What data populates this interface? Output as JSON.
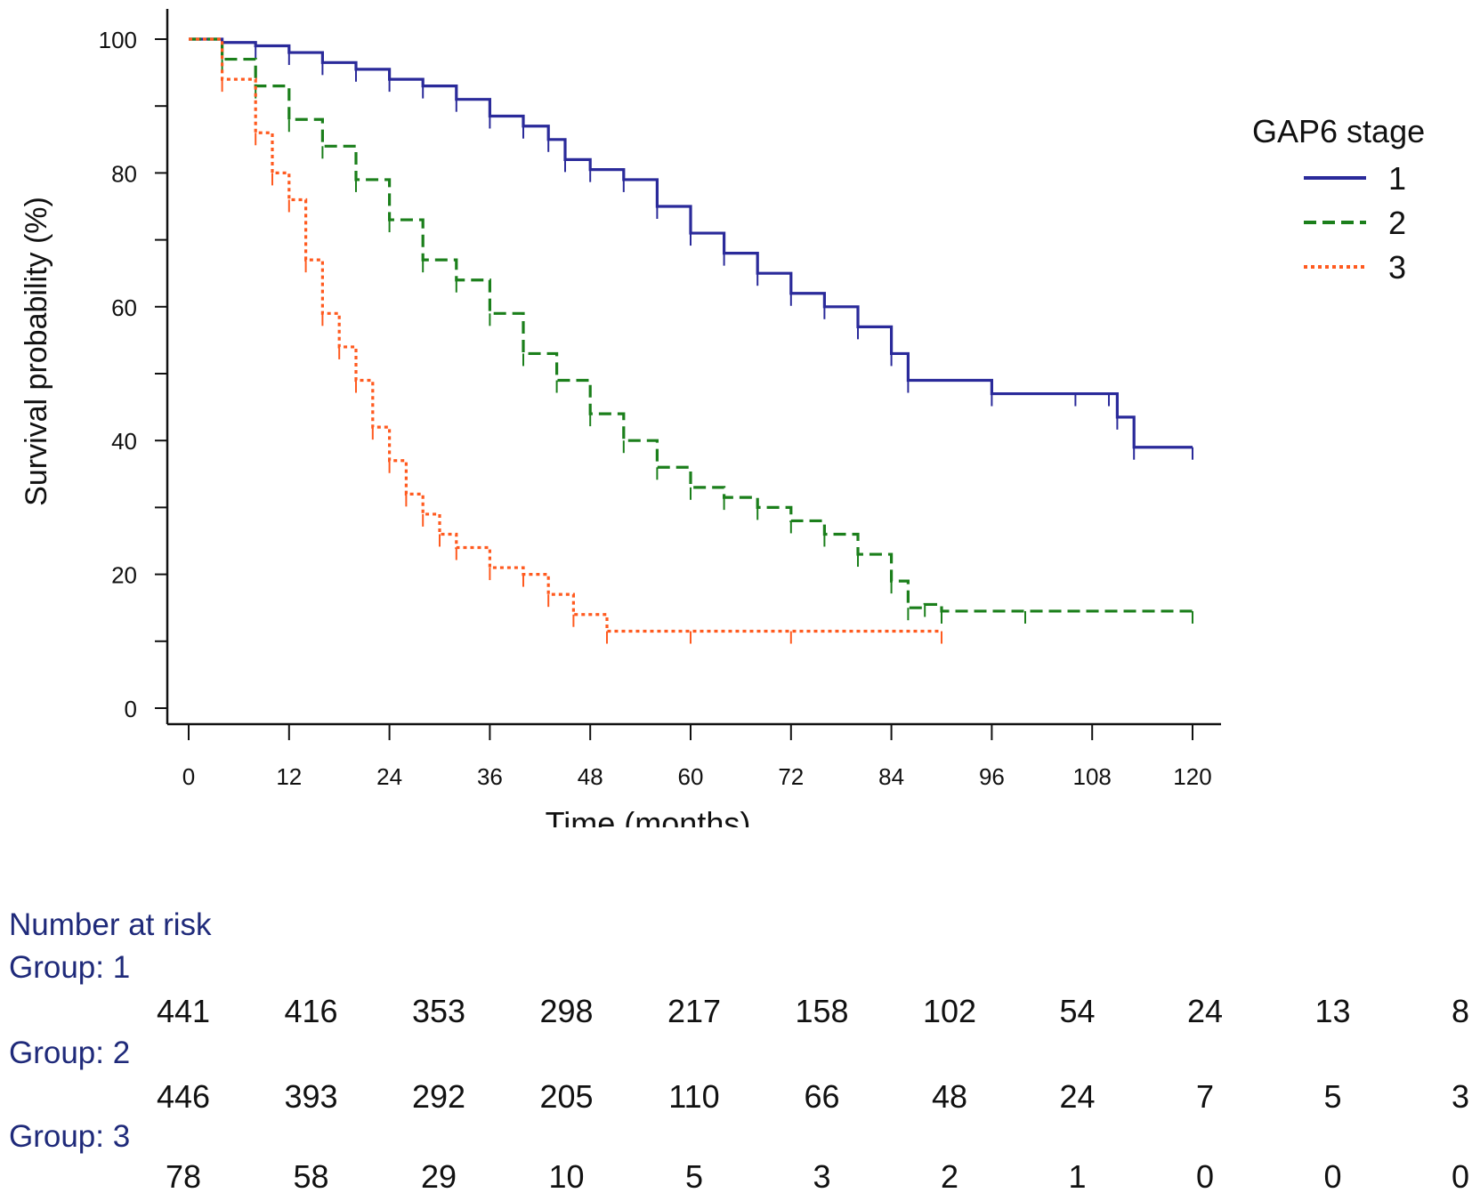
{
  "chart_data": {
    "type": "line",
    "subtype": "kaplan-meier",
    "title": "",
    "xlabel": "Time (months)",
    "ylabel": "Survival probability (%)",
    "xlim": [
      0,
      120
    ],
    "ylim": [
      0,
      100
    ],
    "xticks": [
      0,
      12,
      24,
      36,
      48,
      60,
      72,
      84,
      96,
      108,
      120
    ],
    "yticks": [
      0,
      20,
      40,
      60,
      80,
      100
    ],
    "legend": {
      "title": "GAP6 stage",
      "placement": "top-right"
    },
    "series": [
      {
        "name": "1",
        "color": "#2a2a9a",
        "style": "solid",
        "points": [
          [
            0,
            100
          ],
          [
            4,
            99.5
          ],
          [
            8,
            99
          ],
          [
            12,
            98
          ],
          [
            16,
            96.5
          ],
          [
            20,
            95.5
          ],
          [
            24,
            94
          ],
          [
            28,
            93
          ],
          [
            32,
            91
          ],
          [
            36,
            88.5
          ],
          [
            40,
            87
          ],
          [
            43,
            85
          ],
          [
            45,
            82
          ],
          [
            48,
            80.5
          ],
          [
            52,
            79
          ],
          [
            56,
            75
          ],
          [
            60,
            71
          ],
          [
            64,
            68
          ],
          [
            68,
            65
          ],
          [
            72,
            62
          ],
          [
            76,
            60
          ],
          [
            80,
            57
          ],
          [
            84,
            53
          ],
          [
            86,
            49
          ],
          [
            96,
            47
          ],
          [
            106,
            47
          ],
          [
            110,
            47
          ],
          [
            111,
            43.5
          ],
          [
            113,
            39
          ],
          [
            120,
            39
          ]
        ]
      },
      {
        "name": "2",
        "color": "#1b7f1b",
        "style": "dashed",
        "points": [
          [
            0,
            100
          ],
          [
            4,
            97
          ],
          [
            8,
            93
          ],
          [
            12,
            88
          ],
          [
            16,
            84
          ],
          [
            20,
            79
          ],
          [
            24,
            73
          ],
          [
            28,
            67
          ],
          [
            32,
            64
          ],
          [
            36,
            59
          ],
          [
            40,
            53
          ],
          [
            44,
            49
          ],
          [
            48,
            44
          ],
          [
            52,
            40
          ],
          [
            56,
            36
          ],
          [
            60,
            33
          ],
          [
            64,
            31.5
          ],
          [
            68,
            30
          ],
          [
            72,
            28
          ],
          [
            76,
            26
          ],
          [
            80,
            23
          ],
          [
            84,
            19
          ],
          [
            86,
            15
          ],
          [
            88,
            15.5
          ],
          [
            90,
            14.5
          ],
          [
            100,
            14.5
          ],
          [
            120,
            14.5
          ]
        ]
      },
      {
        "name": "3",
        "color": "#ff5a1f",
        "style": "dotted",
        "points": [
          [
            0,
            100
          ],
          [
            4,
            94
          ],
          [
            8,
            86
          ],
          [
            10,
            80
          ],
          [
            12,
            76
          ],
          [
            14,
            67
          ],
          [
            16,
            59
          ],
          [
            18,
            54
          ],
          [
            20,
            49
          ],
          [
            22,
            42
          ],
          [
            24,
            37
          ],
          [
            26,
            32
          ],
          [
            28,
            29
          ],
          [
            30,
            26
          ],
          [
            32,
            24
          ],
          [
            36,
            21
          ],
          [
            40,
            20
          ],
          [
            43,
            17
          ],
          [
            46,
            14
          ],
          [
            50,
            11.5
          ],
          [
            60,
            11.5
          ],
          [
            72,
            11.5
          ],
          [
            90,
            11.5
          ]
        ]
      }
    ]
  },
  "risk_table": {
    "header": "Number at risk",
    "groups": [
      {
        "label": "Group: 1",
        "values": [
          "441",
          "416",
          "353",
          "298",
          "217",
          "158",
          "102",
          "54",
          "24",
          "13",
          "8"
        ]
      },
      {
        "label": "Group: 2",
        "values": [
          "446",
          "393",
          "292",
          "205",
          "110",
          "66",
          "48",
          "24",
          "7",
          "5",
          "3"
        ]
      },
      {
        "label": "Group: 3",
        "values": [
          "78",
          "58",
          "29",
          "10",
          "5",
          "3",
          "2",
          "1",
          "0",
          "0",
          "0"
        ]
      }
    ]
  }
}
